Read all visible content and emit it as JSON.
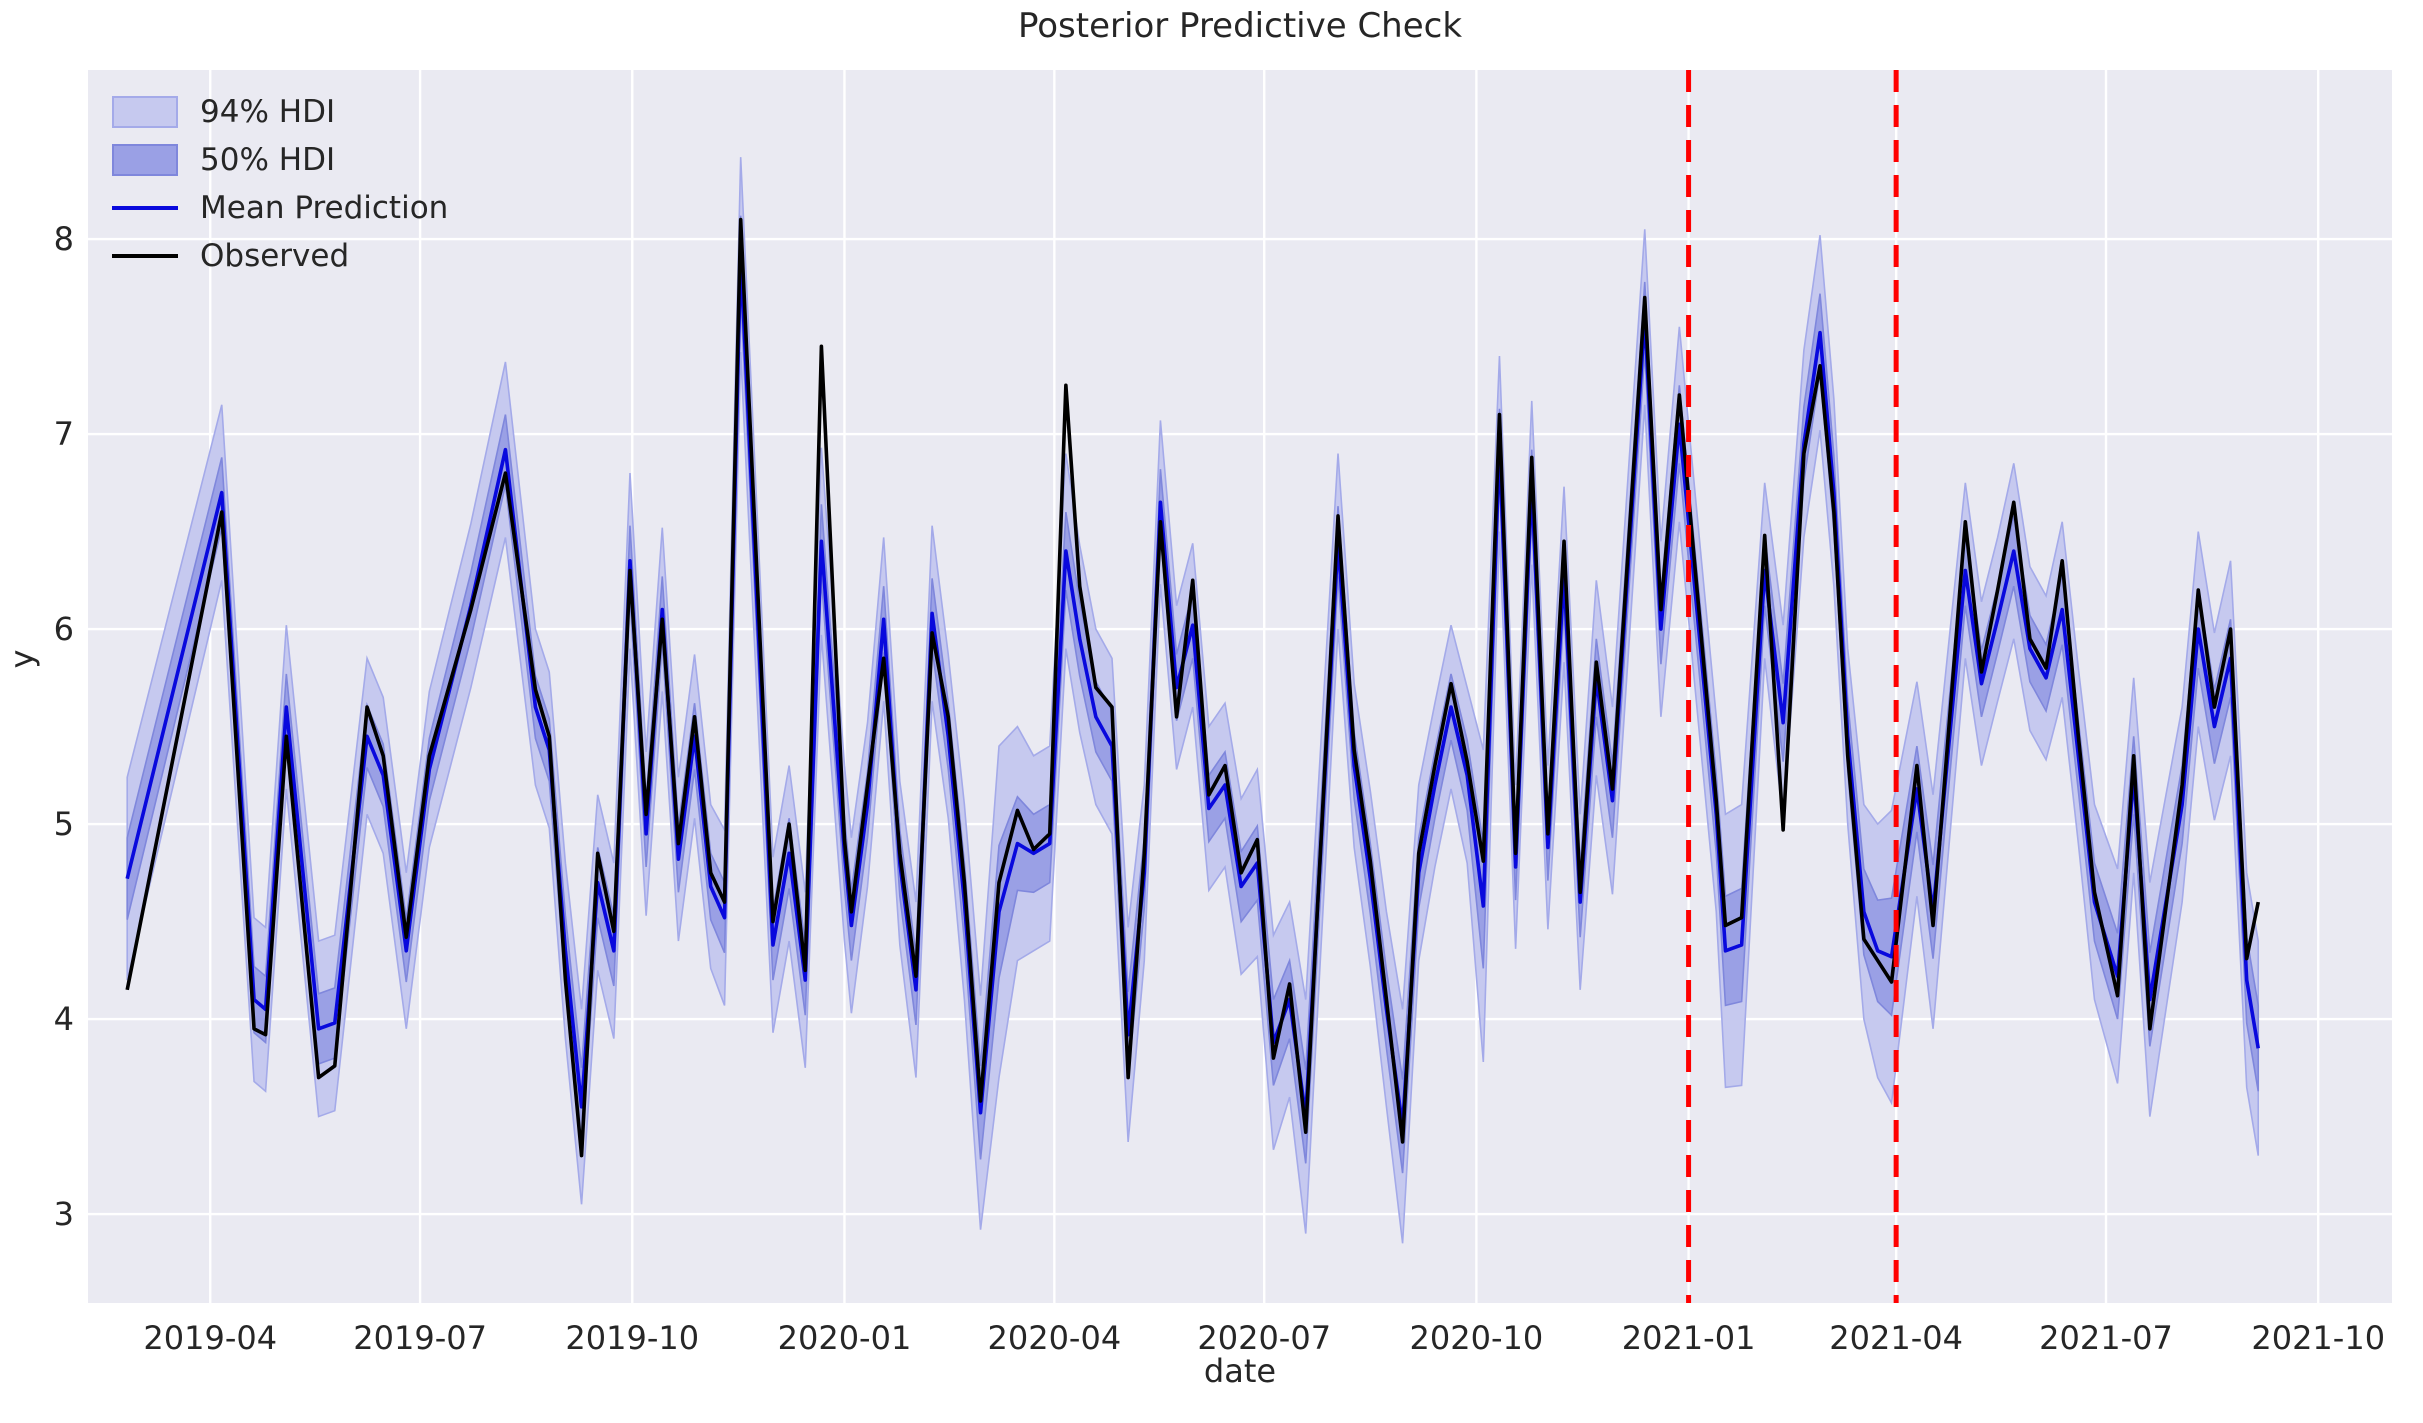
{
  "title": "Posterior Predictive Check",
  "axes": {
    "xlabel": "date",
    "ylabel": "y",
    "ylim": [
      2.544,
      8.867
    ],
    "xlim": [
      "2019-02-07",
      "2021-11-02"
    ],
    "yticks": [
      3,
      4,
      5,
      6,
      7,
      8
    ],
    "xticks": [
      {
        "label": "2019-04",
        "date": "2019-04-01"
      },
      {
        "label": "2019-07",
        "date": "2019-07-01"
      },
      {
        "label": "2019-10",
        "date": "2019-10-01"
      },
      {
        "label": "2020-01",
        "date": "2020-01-01"
      },
      {
        "label": "2020-04",
        "date": "2020-04-01"
      },
      {
        "label": "2020-07",
        "date": "2020-07-01"
      },
      {
        "label": "2020-10",
        "date": "2020-10-01"
      },
      {
        "label": "2021-01",
        "date": "2021-01-01"
      },
      {
        "label": "2021-04",
        "date": "2021-04-01"
      },
      {
        "label": "2021-07",
        "date": "2021-07-01"
      },
      {
        "label": "2021-10",
        "date": "2021-10-01"
      }
    ],
    "grid": true
  },
  "legend": {
    "items": [
      {
        "label": "94% HDI",
        "type": "patch",
        "key": "hdi94"
      },
      {
        "label": "50% HDI",
        "type": "patch",
        "key": "hdi50"
      },
      {
        "label": "Mean Prediction",
        "type": "line",
        "key": "mean"
      },
      {
        "label": "Observed",
        "type": "line",
        "key": "observed"
      }
    ]
  },
  "colors": {
    "figure_bg": "#ffffff",
    "plot_bg": "#eaeaf2",
    "grid": "#ffffff",
    "observed": "#000000",
    "mean": "#0909dd",
    "hdi94_fill": "#c6c9ef",
    "hdi94_edge": "#a4aae9",
    "hdi50_fill": "#9aa0e5",
    "hdi50_edge": "#7f87dc",
    "cutoff": "#ff0000",
    "text": "#262626"
  },
  "cutoff_lines": {
    "style": "dashed",
    "dates": [
      "2021-01-01",
      "2021-04-01"
    ]
  },
  "chart_data": {
    "type": "line",
    "title": "Posterior Predictive Check",
    "xlabel": "date",
    "ylabel": "y",
    "legend_position": "upper left",
    "x": [
      "2019-02-24",
      "2019-04-06",
      "2019-04-20",
      "2019-04-25",
      "2019-05-04",
      "2019-05-18",
      "2019-05-25",
      "2019-06-08",
      "2019-06-15",
      "2019-06-25",
      "2019-07-05",
      "2019-07-23",
      "2019-08-07",
      "2019-08-20",
      "2019-08-26",
      "2019-09-02",
      "2019-09-09",
      "2019-09-16",
      "2019-09-23",
      "2019-09-30",
      "2019-10-07",
      "2019-10-14",
      "2019-10-21",
      "2019-10-28",
      "2019-11-04",
      "2019-11-10",
      "2019-11-17",
      "2019-12-01",
      "2019-12-08",
      "2019-12-15",
      "2019-12-22",
      "2020-01-01",
      "2020-01-04",
      "2020-01-11",
      "2020-01-18",
      "2020-01-25",
      "2020-02-01",
      "2020-02-08",
      "2020-02-15",
      "2020-02-22",
      "2020-02-29",
      "2020-03-08",
      "2020-03-16",
      "2020-03-23",
      "2020-03-30",
      "2020-04-06",
      "2020-04-12",
      "2020-04-19",
      "2020-04-26",
      "2020-05-03",
      "2020-05-10",
      "2020-05-17",
      "2020-05-24",
      "2020-05-31",
      "2020-06-07",
      "2020-06-14",
      "2020-06-21",
      "2020-06-28",
      "2020-07-05",
      "2020-07-12",
      "2020-07-19",
      "2020-08-02",
      "2020-08-09",
      "2020-08-16",
      "2020-08-23",
      "2020-08-30",
      "2020-09-06",
      "2020-09-13",
      "2020-09-20",
      "2020-09-27",
      "2020-10-04",
      "2020-10-11",
      "2020-10-18",
      "2020-10-25",
      "2020-11-01",
      "2020-11-08",
      "2020-11-15",
      "2020-11-22",
      "2020-11-29",
      "2020-12-13",
      "2020-12-20",
      "2020-12-28",
      "2021-01-13",
      "2021-01-17",
      "2021-01-24",
      "2021-02-03",
      "2021-02-11",
      "2021-02-20",
      "2021-02-27",
      "2021-03-05",
      "2021-03-11",
      "2021-03-18",
      "2021-03-24",
      "2021-03-30",
      "2021-04-10",
      "2021-04-17",
      "2021-05-01",
      "2021-05-08",
      "2021-05-15",
      "2021-05-22",
      "2021-05-29",
      "2021-06-05",
      "2021-06-12",
      "2021-06-19",
      "2021-06-26",
      "2021-07-06",
      "2021-07-13",
      "2021-07-20",
      "2021-08-03",
      "2021-08-10",
      "2021-08-17",
      "2021-08-24",
      "2021-08-31",
      "2021-09-05"
    ],
    "series": [
      {
        "name": "Observed",
        "values": [
          4.15,
          6.6,
          3.95,
          3.92,
          5.45,
          3.7,
          3.76,
          5.6,
          5.35,
          4.42,
          5.35,
          6.1,
          6.8,
          5.69,
          5.45,
          4.2,
          3.3,
          4.85,
          4.45,
          6.3,
          5.05,
          6.05,
          4.9,
          5.55,
          4.75,
          4.6,
          8.1,
          4.5,
          5.0,
          4.25,
          7.45,
          4.92,
          4.55,
          5.2,
          5.85,
          4.85,
          4.22,
          5.98,
          5.55,
          4.7,
          3.58,
          4.7,
          5.07,
          4.87,
          4.95,
          7.25,
          6.22,
          5.7,
          5.6,
          3.7,
          4.85,
          6.55,
          5.55,
          6.25,
          5.15,
          5.3,
          4.75,
          4.92,
          3.8,
          4.18,
          3.42,
          6.58,
          5.38,
          4.81,
          4.1,
          3.37,
          4.85,
          5.3,
          5.72,
          5.32,
          4.81,
          7.1,
          4.85,
          6.88,
          4.95,
          6.45,
          4.65,
          5.83,
          5.18,
          7.7,
          6.1,
          7.2,
          5.12,
          4.48,
          4.52,
          6.48,
          4.97,
          6.9,
          7.35,
          6.6,
          5.35,
          4.41,
          4.3,
          4.19,
          5.3,
          4.48,
          6.55,
          5.78,
          6.2,
          6.65,
          5.95,
          5.8,
          6.35,
          5.45,
          4.65,
          4.12,
          5.35,
          3.95,
          5.2,
          6.2,
          5.6,
          6.0,
          4.31,
          4.6
        ]
      },
      {
        "name": "Mean Prediction",
        "values": [
          4.72,
          6.7,
          4.1,
          4.05,
          5.6,
          3.95,
          3.98,
          5.45,
          5.25,
          4.35,
          5.28,
          6.12,
          6.92,
          5.6,
          5.38,
          4.35,
          3.55,
          4.7,
          4.35,
          6.35,
          4.95,
          6.1,
          4.82,
          5.45,
          4.68,
          4.52,
          7.92,
          4.38,
          4.85,
          4.2,
          6.45,
          4.85,
          4.48,
          5.1,
          6.05,
          4.8,
          4.15,
          6.08,
          5.45,
          4.6,
          3.52,
          4.55,
          4.9,
          4.85,
          4.9,
          6.4,
          5.95,
          5.55,
          5.4,
          3.92,
          4.75,
          6.65,
          5.7,
          6.02,
          5.08,
          5.2,
          4.68,
          4.8,
          3.88,
          4.1,
          3.5,
          6.45,
          5.3,
          4.72,
          4.05,
          3.45,
          4.75,
          5.2,
          5.6,
          5.25,
          4.58,
          6.95,
          4.78,
          6.75,
          4.88,
          6.28,
          4.6,
          5.75,
          5.12,
          7.6,
          6.0,
          7.05,
          5.05,
          4.35,
          4.38,
          6.3,
          5.52,
          6.95,
          7.52,
          6.7,
          5.45,
          4.55,
          4.35,
          4.32,
          5.18,
          4.55,
          6.3,
          5.72,
          6.05,
          6.4,
          5.9,
          5.75,
          6.1,
          5.35,
          4.6,
          4.22,
          5.25,
          4.1,
          5.1,
          6.0,
          5.5,
          5.85,
          4.2,
          3.85
        ]
      },
      {
        "name": "94% HDI half-width",
        "values": [
          0.52,
          0.45,
          0.42,
          0.42,
          0.42,
          0.45,
          0.45,
          0.4,
          0.4,
          0.4,
          0.4,
          0.42,
          0.45,
          0.4,
          0.4,
          0.45,
          0.5,
          0.45,
          0.45,
          0.45,
          0.42,
          0.42,
          0.42,
          0.42,
          0.42,
          0.45,
          0.5,
          0.45,
          0.45,
          0.45,
          0.48,
          0.45,
          0.45,
          0.42,
          0.42,
          0.42,
          0.45,
          0.45,
          0.42,
          0.5,
          0.6,
          0.85,
          0.6,
          0.5,
          0.5,
          0.5,
          0.48,
          0.45,
          0.45,
          0.55,
          0.45,
          0.42,
          0.42,
          0.42,
          0.42,
          0.42,
          0.45,
          0.48,
          0.55,
          0.5,
          0.6,
          0.45,
          0.42,
          0.45,
          0.5,
          0.6,
          0.45,
          0.42,
          0.42,
          0.45,
          0.8,
          0.45,
          0.42,
          0.42,
          0.42,
          0.45,
          0.45,
          0.5,
          0.48,
          0.45,
          0.45,
          0.5,
          0.5,
          0.7,
          0.72,
          0.45,
          0.5,
          0.48,
          0.5,
          0.48,
          0.45,
          0.55,
          0.65,
          0.75,
          0.55,
          0.6,
          0.45,
          0.42,
          0.42,
          0.45,
          0.42,
          0.42,
          0.45,
          0.45,
          0.5,
          0.55,
          0.5,
          0.6,
          0.5,
          0.5,
          0.48,
          0.5,
          0.55,
          0.55
        ]
      },
      {
        "name": "50% HDI half-width",
        "values": [
          0.21,
          0.18,
          0.17,
          0.17,
          0.17,
          0.18,
          0.18,
          0.16,
          0.16,
          0.16,
          0.16,
          0.17,
          0.18,
          0.16,
          0.16,
          0.18,
          0.2,
          0.18,
          0.18,
          0.18,
          0.17,
          0.17,
          0.17,
          0.17,
          0.17,
          0.18,
          0.2,
          0.18,
          0.18,
          0.18,
          0.19,
          0.18,
          0.18,
          0.17,
          0.17,
          0.17,
          0.18,
          0.18,
          0.17,
          0.2,
          0.24,
          0.34,
          0.24,
          0.2,
          0.2,
          0.2,
          0.19,
          0.18,
          0.18,
          0.22,
          0.18,
          0.17,
          0.17,
          0.17,
          0.17,
          0.17,
          0.18,
          0.19,
          0.22,
          0.2,
          0.24,
          0.18,
          0.17,
          0.18,
          0.2,
          0.24,
          0.18,
          0.17,
          0.17,
          0.18,
          0.32,
          0.18,
          0.17,
          0.17,
          0.17,
          0.18,
          0.18,
          0.2,
          0.19,
          0.18,
          0.18,
          0.2,
          0.2,
          0.28,
          0.29,
          0.18,
          0.2,
          0.19,
          0.2,
          0.19,
          0.18,
          0.22,
          0.26,
          0.3,
          0.22,
          0.24,
          0.18,
          0.17,
          0.17,
          0.18,
          0.17,
          0.17,
          0.18,
          0.18,
          0.2,
          0.22,
          0.2,
          0.24,
          0.2,
          0.2,
          0.19,
          0.2,
          0.22,
          0.22
        ]
      }
    ]
  }
}
